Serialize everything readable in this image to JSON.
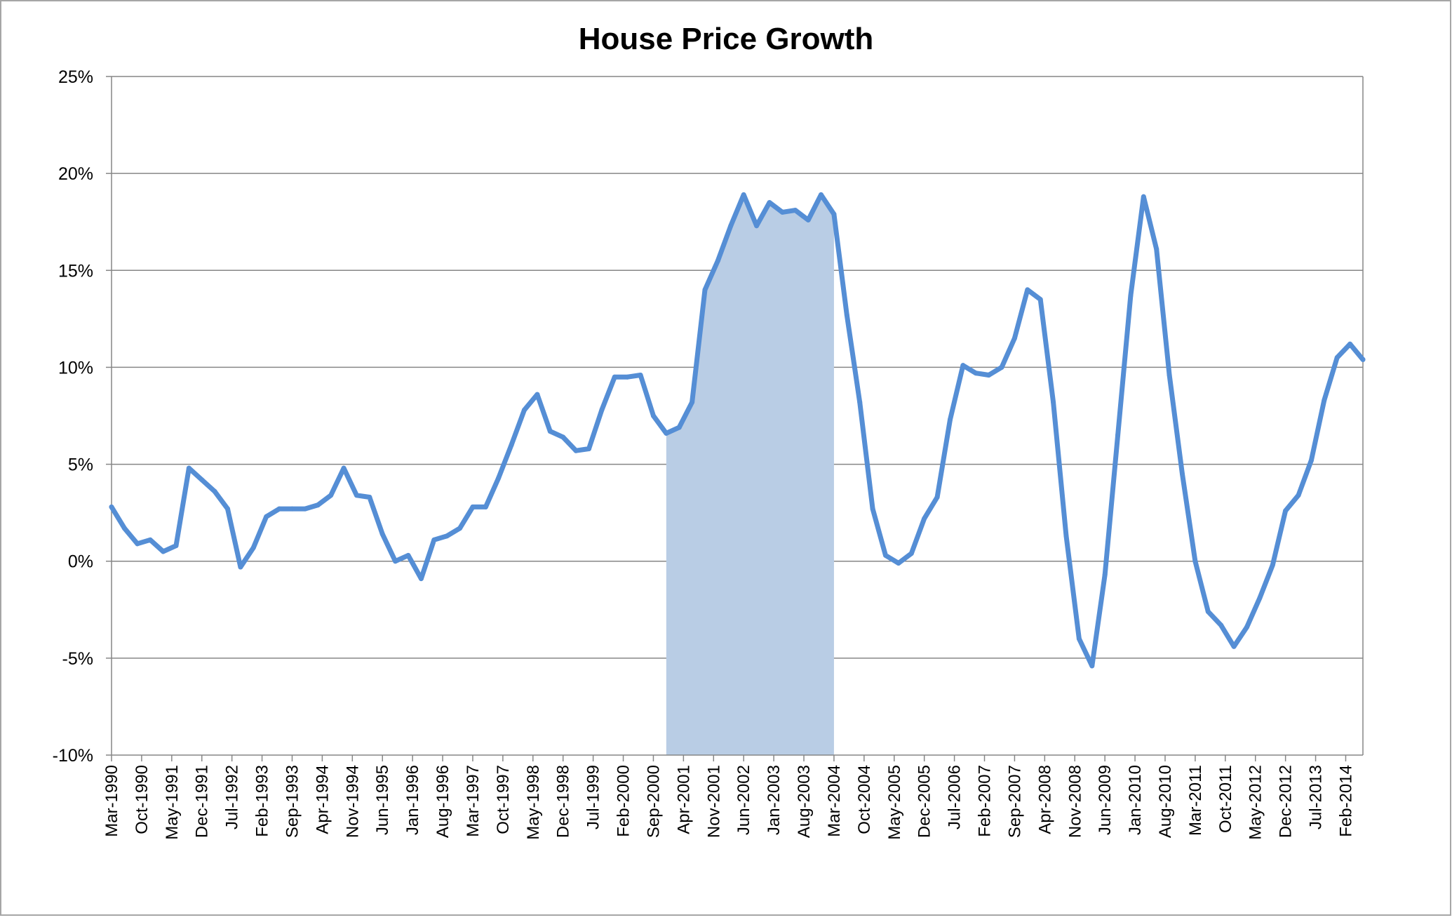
{
  "chart_data": {
    "type": "area",
    "title": "House Price Growth",
    "xlabel": "",
    "ylabel": "",
    "ylim": [
      -10,
      25
    ],
    "y_ticks": [
      25,
      20,
      15,
      10,
      5,
      0,
      -5,
      -10
    ],
    "y_tick_labels": [
      "25%",
      "20%",
      "15%",
      "10%",
      "5%",
      "0%",
      "-5%",
      "-10%"
    ],
    "grid": true,
    "legend": "none",
    "colors": {
      "line": "#558ed5",
      "shade": "#b9cde5",
      "grid": "#868686",
      "axis": "#868686"
    },
    "x_tick_labels": [
      "Mar-1990",
      "Oct-1990",
      "May-1991",
      "Dec-1991",
      "Jul-1992",
      "Feb-1993",
      "Sep-1993",
      "Apr-1994",
      "Nov-1994",
      "Jun-1995",
      "Jan-1996",
      "Aug-1996",
      "Mar-1997",
      "Oct-1997",
      "May-1998",
      "Dec-1998",
      "Jul-1999",
      "Feb-2000",
      "Sep-2000",
      "Apr-2001",
      "Nov-2001",
      "Jun-2002",
      "Jan-2003",
      "Aug-2003",
      "Mar-2004",
      "Oct-2004",
      "May-2005",
      "Dec-2005",
      "Jul-2006",
      "Feb-2007",
      "Sep-2007",
      "Apr-2008",
      "Nov-2008",
      "Jun-2009",
      "Jan-2010",
      "Aug-2010",
      "Mar-2011",
      "Oct-2011",
      "May-2012",
      "Dec-2012",
      "Jul-2013",
      "Feb-2014"
    ],
    "shaded_region": {
      "start": "Dec-2000",
      "end": "Mar-2004"
    },
    "series": [
      {
        "start": "Mar-1990",
        "frequency": "quarterly",
        "values": [
          2.8,
          1.7,
          0.9,
          1.1,
          0.5,
          0.8,
          4.8,
          4.2,
          3.6,
          2.7,
          -0.3,
          0.7,
          2.3,
          2.7,
          2.7,
          2.7,
          2.9,
          3.4,
          4.8,
          3.4,
          3.3,
          1.4,
          0.0,
          0.3,
          -0.9,
          1.1,
          1.3,
          1.7,
          2.8,
          2.8,
          4.3,
          6.0,
          7.8,
          8.6,
          6.7,
          6.4,
          5.7,
          5.8,
          7.8,
          9.5,
          9.5,
          9.6,
          7.5,
          6.6,
          6.9,
          8.2,
          14.0,
          15.5,
          17.3,
          18.9,
          17.3,
          18.5,
          18.0,
          18.1,
          17.6,
          18.9,
          17.9,
          12.7,
          8.2,
          2.7,
          0.3,
          -0.1,
          0.4,
          2.2,
          3.3,
          7.3,
          10.1,
          9.7,
          9.6,
          10.0,
          11.5,
          14.0,
          13.5,
          8.2,
          1.3,
          -4.0,
          -5.4,
          -0.7,
          6.5,
          13.7,
          18.8,
          16.1,
          9.6,
          4.5,
          0.0,
          -2.6,
          -3.3,
          -4.4,
          -3.4,
          -1.9,
          -0.2,
          2.6,
          3.4,
          5.2,
          8.3,
          10.5,
          11.2,
          10.4
        ]
      }
    ]
  }
}
